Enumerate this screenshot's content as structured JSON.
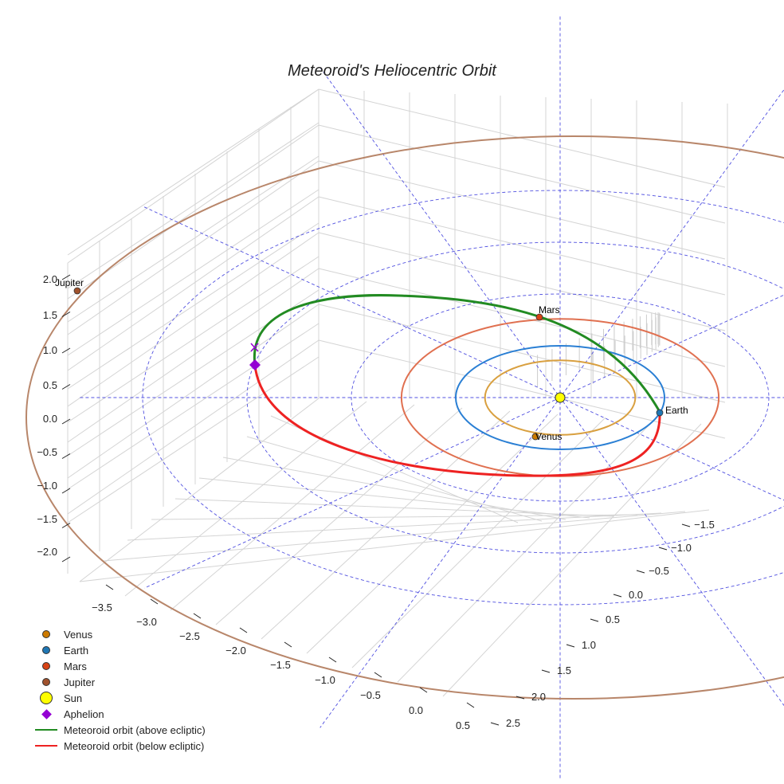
{
  "chart_data": {
    "type": "3d-line",
    "title": "Meteoroid's Heliocentric Orbit",
    "x_ticks": [
      "−3.5",
      "−3.0",
      "−2.5",
      "−2.0",
      "−1.5",
      "−1.0",
      "−0.5",
      "0.0",
      "0.5"
    ],
    "y_ticks": [
      "−1.5",
      "−1.0",
      "−0.5",
      "0.0",
      "0.5",
      "1.0",
      "1.5",
      "2.0",
      "2.5"
    ],
    "z_ticks": [
      "2.0",
      "1.5",
      "1.0",
      "0.5",
      "0.0",
      "−0.5",
      "−1.0",
      "−1.5",
      "−2.0"
    ],
    "planets": [
      {
        "name": "Venus",
        "a_au": 0.72,
        "color": "#cc7a00",
        "label": "Venus"
      },
      {
        "name": "Earth",
        "a_au": 1.0,
        "color": "#1f77b4",
        "label": "Earth"
      },
      {
        "name": "Mars",
        "a_au": 1.52,
        "color": "#d84315",
        "label": "Mars"
      },
      {
        "name": "Jupiter",
        "a_au": 5.2,
        "color": "#a0522d",
        "label": "Jupiter"
      }
    ],
    "orbit_colors": {
      "Venus": "#d9a040",
      "Earth": "#2a7fd4",
      "Mars": "#e07050",
      "Jupiter": "#b8866a"
    },
    "sun_color": "#ffff00",
    "aphelion_color": "#9400d3",
    "meteoroid": {
      "aphelion_au": 2.9,
      "perihelion_au": 0.95,
      "above_color": "#228b22",
      "below_color": "#ee2222"
    },
    "grid_circles_au": [
      2,
      3,
      4
    ],
    "legend": [
      {
        "label": "Venus",
        "kind": "dot",
        "color": "#cc7a00"
      },
      {
        "label": "Earth",
        "kind": "dot",
        "color": "#1f77b4"
      },
      {
        "label": "Mars",
        "kind": "dot",
        "color": "#d84315"
      },
      {
        "label": "Jupiter",
        "kind": "dot",
        "color": "#a0522d"
      },
      {
        "label": "Sun",
        "kind": "sun",
        "color": "#ffff00"
      },
      {
        "label": "Aphelion",
        "kind": "diamond",
        "color": "#9400d3"
      },
      {
        "label": "Meteoroid orbit (above ecliptic)",
        "kind": "line",
        "color": "#228b22"
      },
      {
        "label": "Meteoroid orbit (below ecliptic)",
        "kind": "line",
        "color": "#ee2222"
      }
    ]
  }
}
